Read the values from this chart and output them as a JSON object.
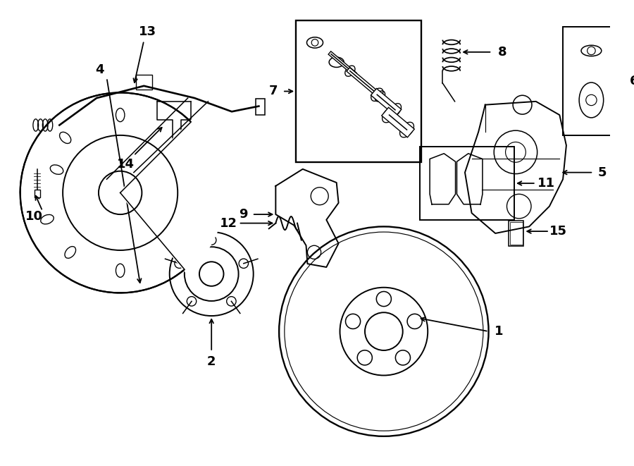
{
  "bg_color": "#ffffff",
  "line_color": "#000000",
  "fig_width": 9.0,
  "fig_height": 6.61,
  "lw": 1.4
}
